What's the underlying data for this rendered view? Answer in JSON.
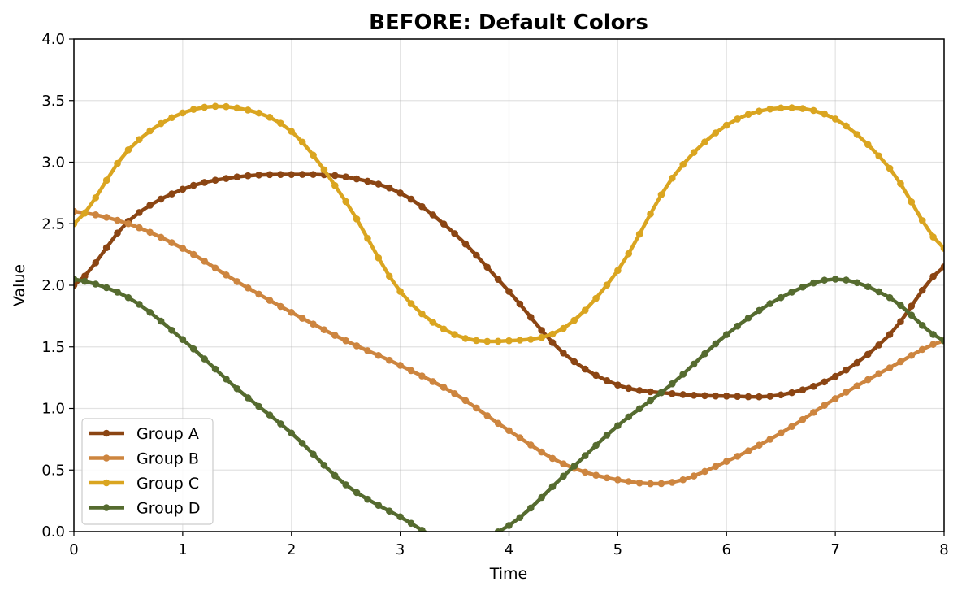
{
  "chart_data": {
    "type": "line",
    "title": "BEFORE: Default Colors",
    "xlabel": "Time",
    "ylabel": "Value",
    "xlim": [
      0,
      8
    ],
    "ylim": [
      0,
      4
    ],
    "xticks": [
      "0",
      "1",
      "2",
      "3",
      "4",
      "5",
      "6",
      "7",
      "8"
    ],
    "yticks": [
      "0.0",
      "0.5",
      "1.0",
      "1.5",
      "2.0",
      "2.5",
      "3.0",
      "3.5",
      "4.0"
    ],
    "grid": true,
    "legend_position": "lower-left",
    "x": [
      0,
      0.5,
      1,
      1.5,
      2,
      2.5,
      3,
      3.5,
      4,
      4.5,
      5,
      5.5,
      6,
      6.5,
      7,
      7.5,
      8
    ],
    "series": [
      {
        "name": "Group A",
        "color": "#8B4513",
        "values": [
          2.0,
          2.52,
          2.78,
          2.88,
          2.9,
          2.88,
          2.75,
          2.42,
          1.95,
          1.45,
          1.19,
          1.12,
          1.1,
          1.11,
          1.26,
          1.6,
          2.15
        ]
      },
      {
        "name": "Group B",
        "color": "#CD853F",
        "values": [
          2.6,
          2.5,
          2.3,
          2.03,
          1.78,
          1.55,
          1.35,
          1.12,
          0.82,
          0.55,
          0.42,
          0.4,
          0.57,
          0.8,
          1.08,
          1.33,
          1.55
        ]
      },
      {
        "name": "Group C",
        "color": "#DAA520",
        "values": [
          2.5,
          3.1,
          3.4,
          3.44,
          3.25,
          2.68,
          1.95,
          1.6,
          1.55,
          1.65,
          2.12,
          2.87,
          3.3,
          3.44,
          3.35,
          2.95,
          2.3
        ]
      },
      {
        "name": "Group D",
        "color": "#556B2F",
        "values": [
          2.05,
          1.9,
          1.56,
          1.16,
          0.8,
          0.38,
          0.12,
          -0.1,
          0.05,
          0.45,
          0.86,
          1.2,
          1.6,
          1.9,
          2.05,
          1.9,
          1.55
        ]
      }
    ]
  }
}
